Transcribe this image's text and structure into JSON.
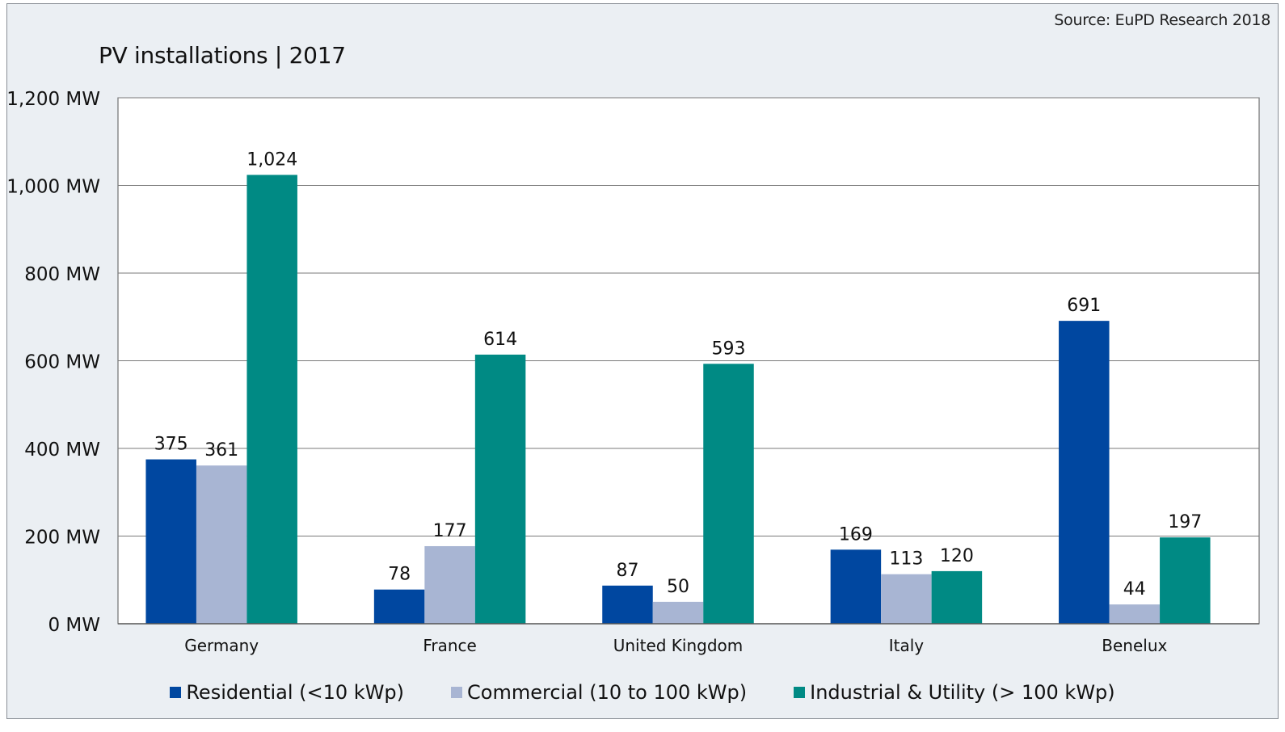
{
  "chart_data": {
    "type": "bar",
    "title": "PV installations | 2017",
    "source": "Source: EuPD Research 2018",
    "xlabel": "",
    "ylabel": "",
    "ylim": [
      0,
      1200
    ],
    "y_ticks": [
      "0 MW",
      "200 MW",
      "400 MW",
      "600 MW",
      "800 MW",
      "1,000 MW",
      "1,200 MW"
    ],
    "y_tick_values": [
      0,
      200,
      400,
      600,
      800,
      1000,
      1200
    ],
    "grid": true,
    "legend_position": "bottom",
    "categories": [
      "Germany",
      "France",
      "United Kingdom",
      "Italy",
      "Benelux"
    ],
    "series": [
      {
        "name": "Residential (<10 kWp)",
        "color": "#0047a0",
        "values": [
          375,
          78,
          87,
          169,
          691
        ],
        "labels": [
          "375",
          "78",
          "87",
          "169",
          "691"
        ]
      },
      {
        "name": "Commercial (10 to 100 kWp)",
        "color": "#a8b5d3",
        "values": [
          361,
          177,
          50,
          113,
          44
        ],
        "labels": [
          "361",
          "177",
          "50",
          "113",
          "44"
        ]
      },
      {
        "name": "Industrial & Utility (> 100 kWp)",
        "color": "#008a84",
        "values": [
          1024,
          614,
          593,
          120,
          197
        ],
        "labels": [
          "1,024",
          "614",
          "593",
          "120",
          "197"
        ]
      }
    ]
  }
}
